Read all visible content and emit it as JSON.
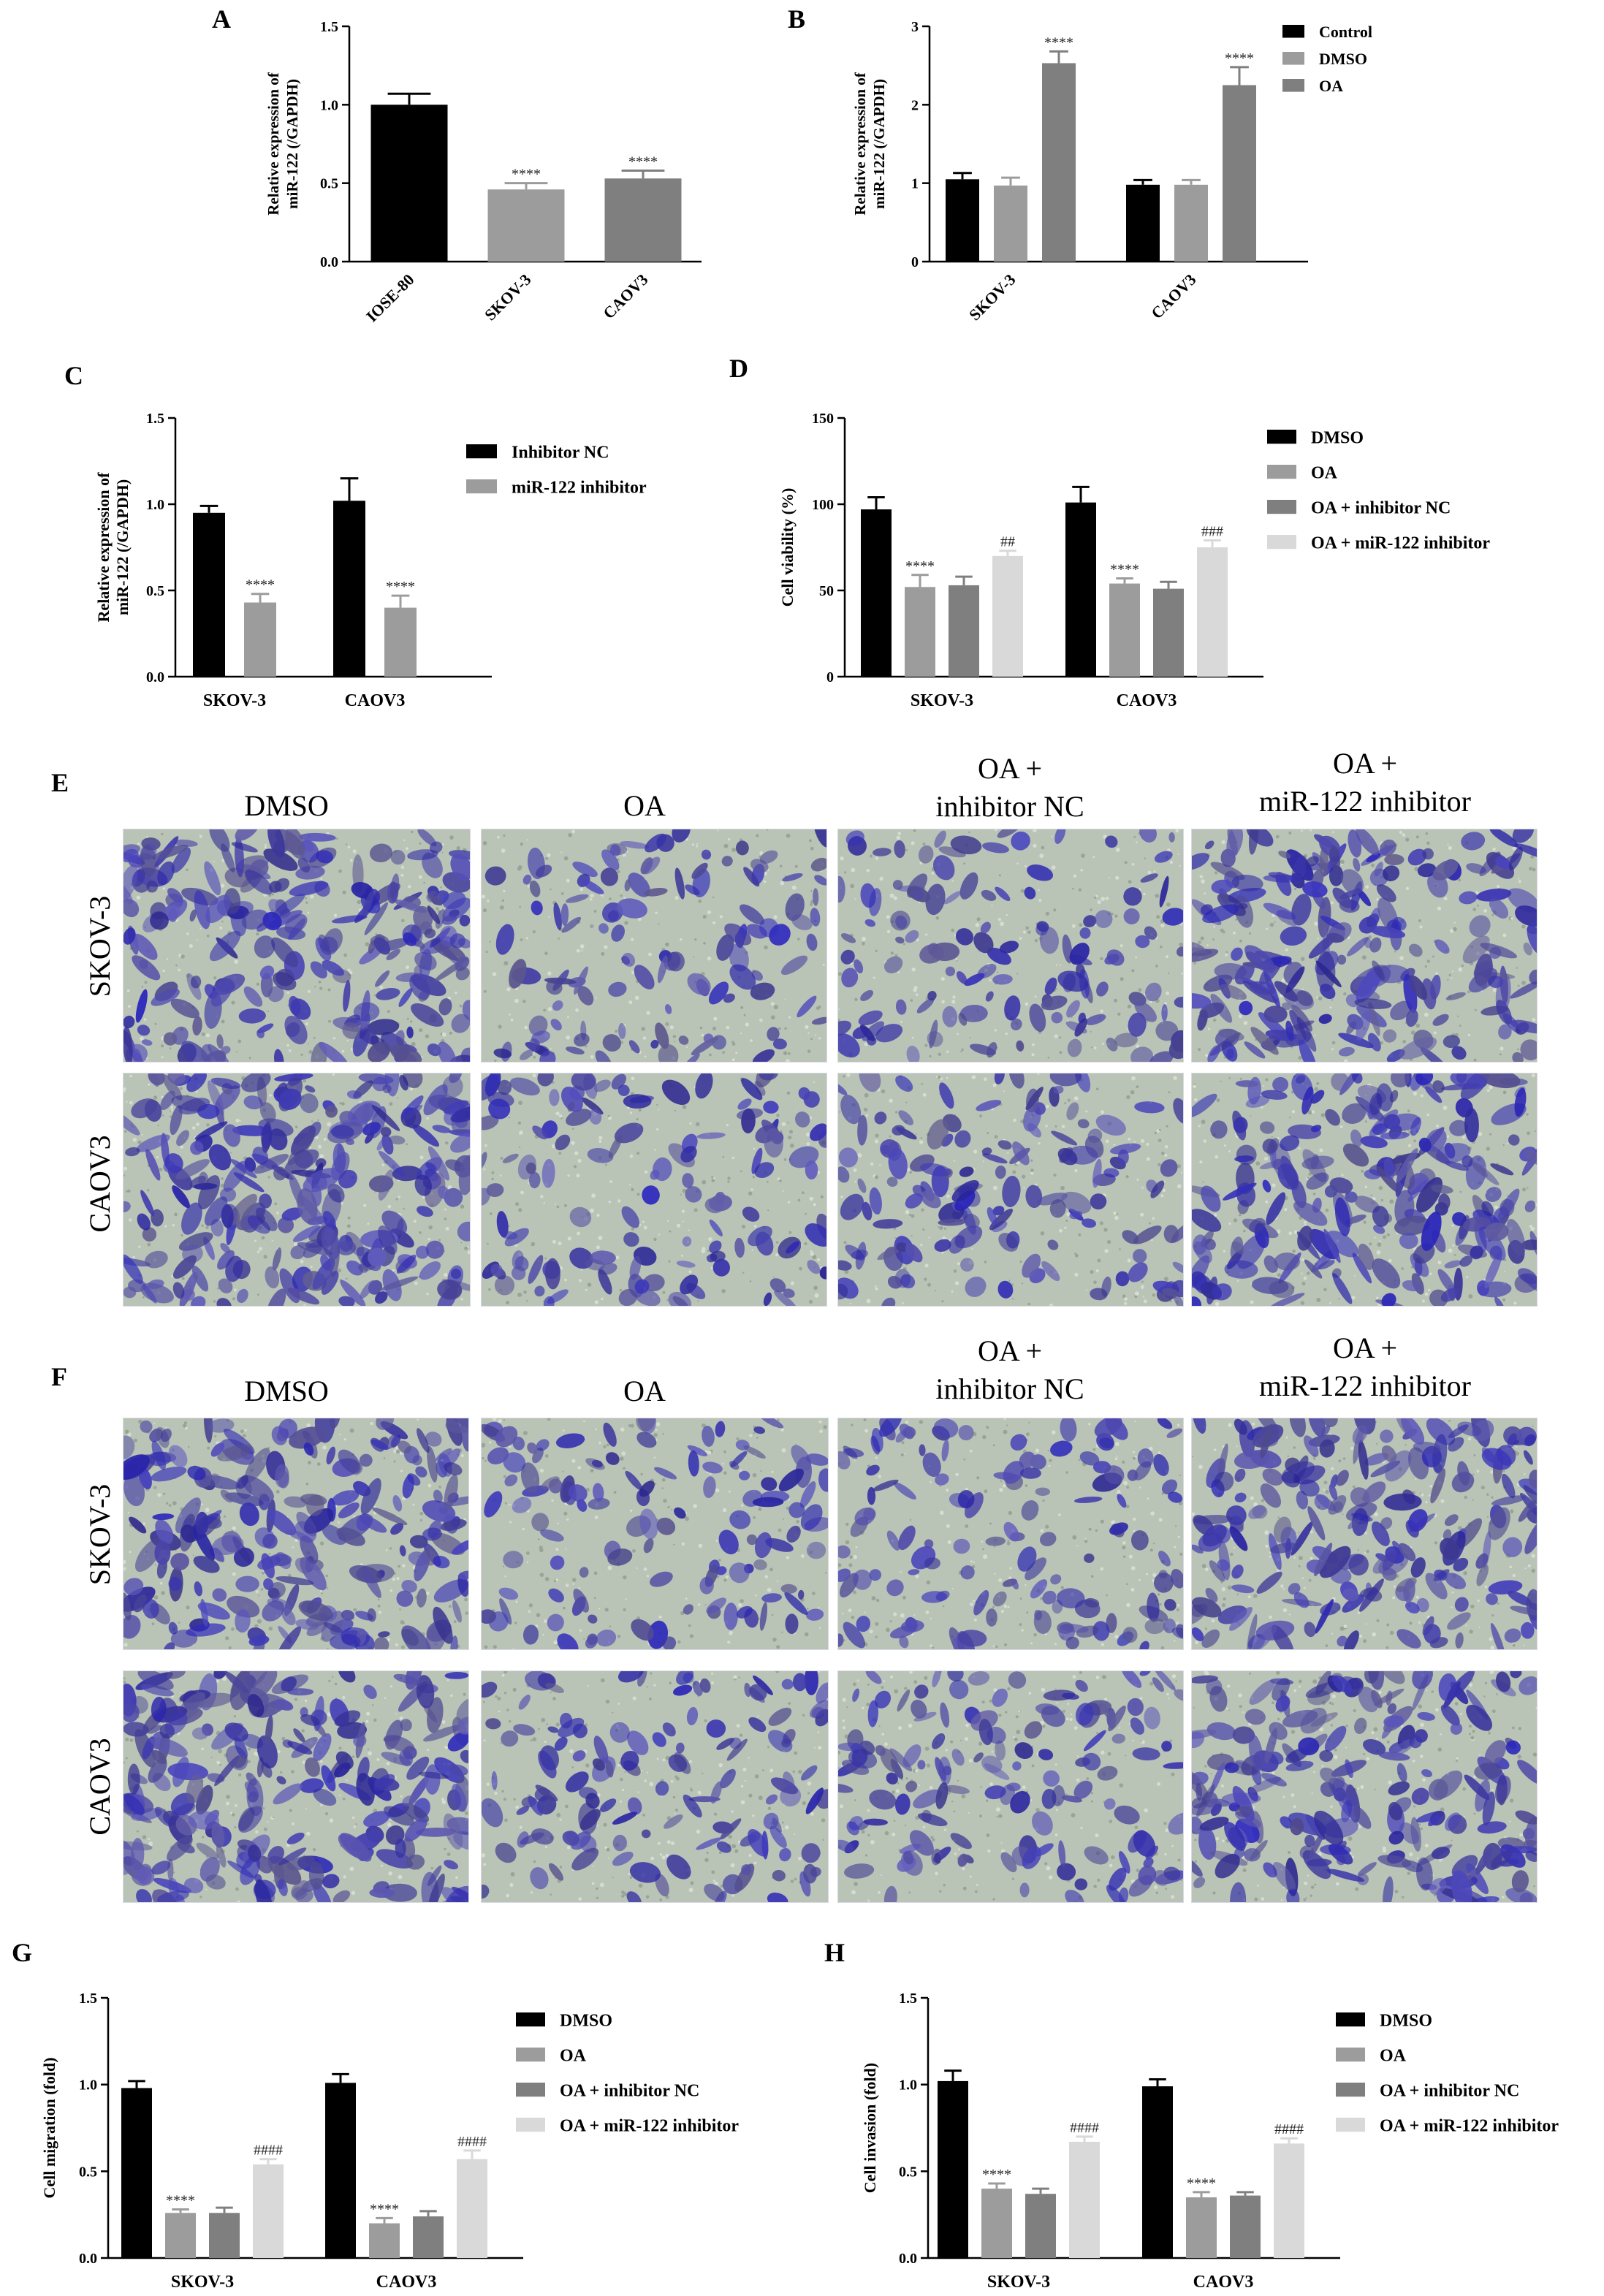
{
  "colors": {
    "black": "#000000",
    "mid_gray": "#9c9c9c",
    "dark_gray": "#7f7f7f",
    "light_gray": "#d9d9d9",
    "photo_bg": "#b9c3b6",
    "stain": "#3d3ba8"
  },
  "chart_data": [
    {
      "id": "A",
      "panel_label": "A",
      "type": "bar",
      "ylabel": [
        "Relative expression of",
        "miR-122 (/GAPDH)"
      ],
      "ylim": [
        0,
        1.5
      ],
      "yticks": [
        0,
        0.5,
        1.0,
        1.5
      ],
      "ytick_labels": [
        "0.0",
        "0.5",
        "1.0",
        "1.5"
      ],
      "group_label_rotate": true,
      "groups": [
        {
          "label": "IOSE-80",
          "bars": [
            {
              "series": 0,
              "value": 1.0,
              "err": 0.07,
              "annot": ""
            }
          ]
        },
        {
          "label": "SKOV-3",
          "bars": [
            {
              "series": 0,
              "value": 0.46,
              "err": 0.04,
              "annot": "****"
            }
          ]
        },
        {
          "label": "CAOV3",
          "bars": [
            {
              "series": 0,
              "value": 0.53,
              "err": 0.05,
              "annot": "****"
            }
          ]
        }
      ],
      "series": [
        {
          "name": "",
          "color": "mixed"
        }
      ],
      "bar_colors_by_group": [
        "#000000",
        "#9c9c9c",
        "#7f7f7f"
      ],
      "legend": []
    },
    {
      "id": "B",
      "panel_label": "B",
      "type": "bar",
      "ylabel": [
        "Relative expression of",
        "miR-122 (/GAPDH)"
      ],
      "ylim": [
        0,
        3
      ],
      "yticks": [
        0,
        1,
        2,
        3
      ],
      "ytick_labels": [
        "0",
        "1",
        "2",
        "3"
      ],
      "group_label_rotate": true,
      "groups": [
        {
          "label": "SKOV-3",
          "bars": [
            {
              "series": 0,
              "value": 1.05,
              "err": 0.08,
              "annot": ""
            },
            {
              "series": 1,
              "value": 0.97,
              "err": 0.1,
              "annot": ""
            },
            {
              "series": 2,
              "value": 2.53,
              "err": 0.15,
              "annot": "****"
            }
          ]
        },
        {
          "label": "CAOV3",
          "bars": [
            {
              "series": 0,
              "value": 0.98,
              "err": 0.06,
              "annot": ""
            },
            {
              "series": 1,
              "value": 0.98,
              "err": 0.06,
              "annot": ""
            },
            {
              "series": 2,
              "value": 2.25,
              "err": 0.23,
              "annot": "****"
            }
          ]
        }
      ],
      "series": [
        {
          "name": "Control",
          "color": "#000000"
        },
        {
          "name": "DMSO",
          "color": "#9c9c9c"
        },
        {
          "name": "OA",
          "color": "#7f7f7f"
        }
      ],
      "legend": [
        "Control",
        "DMSO",
        "OA"
      ]
    },
    {
      "id": "C",
      "panel_label": "C",
      "type": "bar",
      "ylabel": [
        "Relative expression of",
        "miR-122 (/GAPDH)"
      ],
      "ylim": [
        0,
        1.5
      ],
      "yticks": [
        0,
        0.5,
        1.0,
        1.5
      ],
      "ytick_labels": [
        "0.0",
        "0.5",
        "1.0",
        "1.5"
      ],
      "group_label_rotate": false,
      "groups": [
        {
          "label": "SKOV-3",
          "bars": [
            {
              "series": 0,
              "value": 0.95,
              "err": 0.04,
              "annot": ""
            },
            {
              "series": 1,
              "value": 0.43,
              "err": 0.05,
              "annot": "****"
            }
          ]
        },
        {
          "label": "CAOV3",
          "bars": [
            {
              "series": 0,
              "value": 1.02,
              "err": 0.13,
              "annot": ""
            },
            {
              "series": 1,
              "value": 0.4,
              "err": 0.07,
              "annot": "****"
            }
          ]
        }
      ],
      "series": [
        {
          "name": "Inhibitor NC",
          "color": "#000000"
        },
        {
          "name": "miR-122 inhibitor",
          "color": "#9c9c9c"
        }
      ],
      "legend": [
        "Inhibitor NC",
        "miR-122 inhibitor"
      ]
    },
    {
      "id": "D",
      "panel_label": "D",
      "type": "bar",
      "ylabel": [
        "Cell viability (%)"
      ],
      "ylim": [
        0,
        150
      ],
      "yticks": [
        0,
        50,
        100,
        150
      ],
      "ytick_labels": [
        "0",
        "50",
        "100",
        "150"
      ],
      "group_label_rotate": false,
      "groups": [
        {
          "label": "SKOV-3",
          "bars": [
            {
              "series": 0,
              "value": 97,
              "err": 7,
              "annot": ""
            },
            {
              "series": 1,
              "value": 52,
              "err": 7,
              "annot": "****"
            },
            {
              "series": 2,
              "value": 53,
              "err": 5,
              "annot": ""
            },
            {
              "series": 3,
              "value": 70,
              "err": 3,
              "annot": "##"
            }
          ]
        },
        {
          "label": "CAOV3",
          "bars": [
            {
              "series": 0,
              "value": 101,
              "err": 9,
              "annot": ""
            },
            {
              "series": 1,
              "value": 54,
              "err": 3,
              "annot": "****"
            },
            {
              "series": 2,
              "value": 51,
              "err": 4,
              "annot": ""
            },
            {
              "series": 3,
              "value": 75,
              "err": 4,
              "annot": "###"
            }
          ]
        }
      ],
      "series": [
        {
          "name": "DMSO",
          "color": "#000000"
        },
        {
          "name": "OA",
          "color": "#9c9c9c"
        },
        {
          "name": "OA + inhibitor NC",
          "color": "#7f7f7f"
        },
        {
          "name": "OA + miR-122 inhibitor",
          "color": "#d9d9d9"
        }
      ],
      "legend": [
        "DMSO",
        "OA",
        "OA + inhibitor NC",
        "OA + miR-122 inhibitor"
      ]
    },
    {
      "id": "G",
      "panel_label": "G",
      "type": "bar",
      "ylabel": [
        "Cell migration (fold)"
      ],
      "ylim": [
        0,
        1.5
      ],
      "yticks": [
        0,
        0.5,
        1.0,
        1.5
      ],
      "ytick_labels": [
        "0.0",
        "0.5",
        "1.0",
        "1.5"
      ],
      "group_label_rotate": false,
      "groups": [
        {
          "label": "SKOV-3",
          "bars": [
            {
              "series": 0,
              "value": 0.98,
              "err": 0.04,
              "annot": ""
            },
            {
              "series": 1,
              "value": 0.26,
              "err": 0.02,
              "annot": "****"
            },
            {
              "series": 2,
              "value": 0.26,
              "err": 0.03,
              "annot": ""
            },
            {
              "series": 3,
              "value": 0.54,
              "err": 0.03,
              "annot": "####"
            }
          ]
        },
        {
          "label": "CAOV3",
          "bars": [
            {
              "series": 0,
              "value": 1.01,
              "err": 0.05,
              "annot": ""
            },
            {
              "series": 1,
              "value": 0.2,
              "err": 0.03,
              "annot": "****"
            },
            {
              "series": 2,
              "value": 0.24,
              "err": 0.03,
              "annot": ""
            },
            {
              "series": 3,
              "value": 0.57,
              "err": 0.05,
              "annot": "####"
            }
          ]
        }
      ],
      "series": [
        {
          "name": "DMSO",
          "color": "#000000"
        },
        {
          "name": "OA",
          "color": "#9c9c9c"
        },
        {
          "name": "OA + inhibitor NC",
          "color": "#7f7f7f"
        },
        {
          "name": "OA + miR-122 inhibitor",
          "color": "#d9d9d9"
        }
      ],
      "legend": [
        "DMSO",
        "OA",
        "OA + inhibitor NC",
        "OA + miR-122 inhibitor"
      ]
    },
    {
      "id": "H",
      "panel_label": "H",
      "type": "bar",
      "ylabel": [
        "Cell invasion (fold)"
      ],
      "ylim": [
        0,
        1.5
      ],
      "yticks": [
        0,
        0.5,
        1.0,
        1.5
      ],
      "ytick_labels": [
        "0.0",
        "0.5",
        "1.0",
        "1.5"
      ],
      "group_label_rotate": false,
      "groups": [
        {
          "label": "SKOV-3",
          "bars": [
            {
              "series": 0,
              "value": 1.02,
              "err": 0.06,
              "annot": ""
            },
            {
              "series": 1,
              "value": 0.4,
              "err": 0.03,
              "annot": "****"
            },
            {
              "series": 2,
              "value": 0.37,
              "err": 0.03,
              "annot": ""
            },
            {
              "series": 3,
              "value": 0.67,
              "err": 0.03,
              "annot": "####"
            }
          ]
        },
        {
          "label": "CAOV3",
          "bars": [
            {
              "series": 0,
              "value": 0.99,
              "err": 0.04,
              "annot": ""
            },
            {
              "series": 1,
              "value": 0.35,
              "err": 0.03,
              "annot": "****"
            },
            {
              "series": 2,
              "value": 0.36,
              "err": 0.02,
              "annot": ""
            },
            {
              "series": 3,
              "value": 0.66,
              "err": 0.03,
              "annot": "####"
            }
          ]
        }
      ],
      "series": [
        {
          "name": "DMSO",
          "color": "#000000"
        },
        {
          "name": "OA",
          "color": "#9c9c9c"
        },
        {
          "name": "OA + inhibitor NC",
          "color": "#7f7f7f"
        },
        {
          "name": "OA + miR-122 inhibitor",
          "color": "#d9d9d9"
        }
      ],
      "legend": [
        "DMSO",
        "OA",
        "OA + inhibitor NC",
        "OA + miR-122 inhibitor"
      ]
    }
  ],
  "image_grids": [
    {
      "id": "E",
      "panel_label": "E",
      "columns": [
        [
          "DMSO"
        ],
        [
          "OA"
        ],
        [
          "OA +",
          "inhibitor NC"
        ],
        [
          "OA +",
          "miR-122 inhibitor"
        ]
      ],
      "rows": [
        "SKOV-3",
        "CAOV3"
      ],
      "cell_density": [
        [
          0.9,
          0.35,
          0.4,
          0.8
        ],
        [
          0.95,
          0.4,
          0.45,
          0.8
        ]
      ]
    },
    {
      "id": "F",
      "panel_label": "F",
      "columns": [
        [
          "DMSO"
        ],
        [
          "OA"
        ],
        [
          "OA +",
          "inhibitor NC"
        ],
        [
          "OA +",
          "miR-122 inhibitor"
        ]
      ],
      "rows": [
        "SKOV-3",
        "CAOV3"
      ],
      "cell_density": [
        [
          0.85,
          0.35,
          0.4,
          0.75
        ],
        [
          0.9,
          0.4,
          0.45,
          0.75
        ]
      ]
    }
  ]
}
